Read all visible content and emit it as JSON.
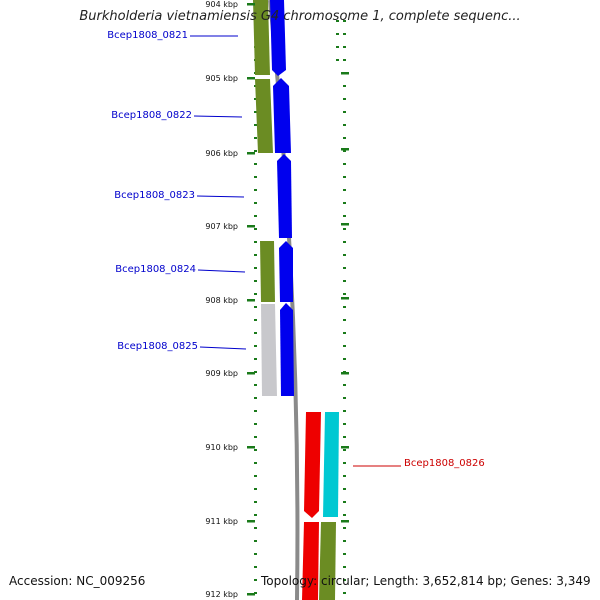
{
  "title": "Burkholderia vietnamiensis G4 chromosome 1, complete sequenc...",
  "accession_line": "Accession: NC_009256",
  "topology_line": "Topology: circular; Length: 3,652,814 bp; Genes: 3,349",
  "colors": {
    "forward_gene": "#0000ee",
    "reverse_gene": "#ee0000",
    "forward_cds_feature": "#6b8c23",
    "reverse_cds_feature": "#00c8d2",
    "pseudo_feature": "#c8c8cc",
    "tick": "#1a7a1a",
    "backbone": "#8a8a8a",
    "forward_label": "#0000cc",
    "reverse_label": "#cc0000"
  },
  "ticks": [
    {
      "label": "904 kbp"
    },
    {
      "label": "905 kbp"
    },
    {
      "label": "906 kbp"
    },
    {
      "label": "907 kbp"
    },
    {
      "label": "908 kbp"
    },
    {
      "label": "909 kbp"
    },
    {
      "label": "910 kbp"
    },
    {
      "label": "911 kbp"
    },
    {
      "label": "912 kbp"
    }
  ],
  "genes": [
    {
      "name": "Bcep1808_0821",
      "strand": "forward"
    },
    {
      "name": "Bcep1808_0822",
      "strand": "forward"
    },
    {
      "name": "Bcep1808_0823",
      "strand": "forward"
    },
    {
      "name": "Bcep1808_0824",
      "strand": "forward"
    },
    {
      "name": "Bcep1808_0825",
      "strand": "forward"
    },
    {
      "name": "Bcep1808_0826",
      "strand": "reverse"
    }
  ]
}
